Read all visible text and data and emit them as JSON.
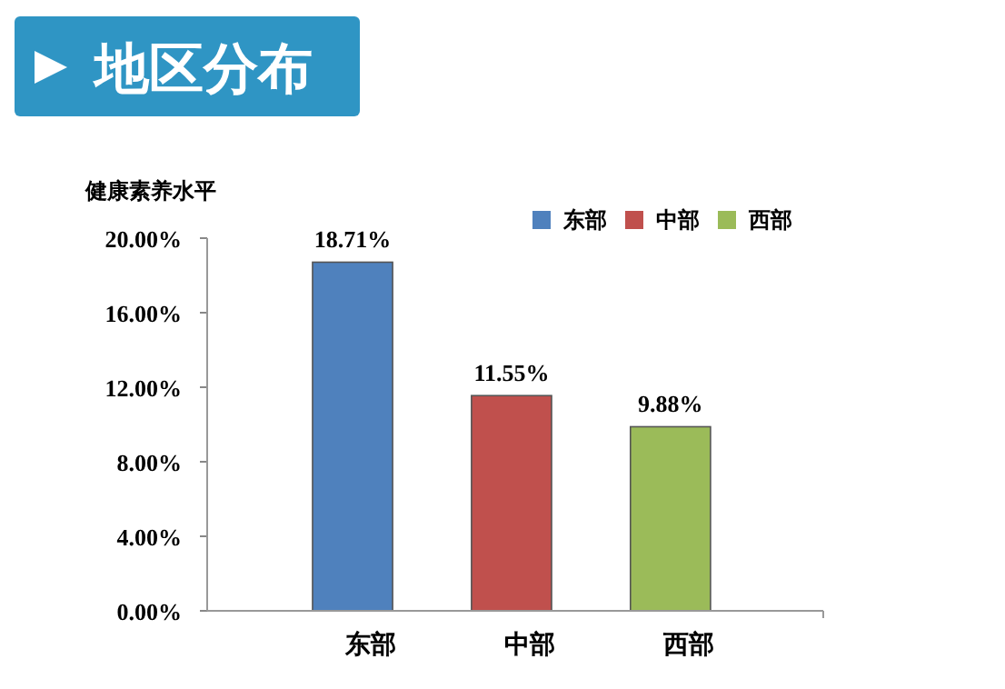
{
  "chart_data": {
    "type": "bar",
    "title": "地区分布",
    "ylabel": "健康素养水平",
    "categories": [
      "东部",
      "中部",
      "西部"
    ],
    "stacked": true,
    "series": [
      {
        "name": "东部",
        "color": "#4f81bd",
        "values": [
          18.71,
          null,
          null
        ],
        "value_labels": [
          "18.71%",
          null,
          null
        ]
      },
      {
        "name": "中部",
        "color": "#c0504d",
        "values": [
          null,
          11.55,
          null
        ],
        "value_labels": [
          null,
          "11.55%",
          null
        ]
      },
      {
        "name": "西部",
        "color": "#9bbb59",
        "values": [
          null,
          null,
          9.88
        ],
        "value_labels": [
          null,
          null,
          "9.88%"
        ]
      }
    ],
    "ylim": [
      0,
      20
    ],
    "yticks": [
      {
        "value": 0,
        "label": "0.00%"
      },
      {
        "value": 4,
        "label": "4.00%"
      },
      {
        "value": 8,
        "label": "8.00%"
      },
      {
        "value": 12,
        "label": "12.00%"
      },
      {
        "value": 16,
        "label": "16.00%"
      },
      {
        "value": 20,
        "label": "20.00%"
      }
    ],
    "legend": "top right",
    "grid": false
  }
}
